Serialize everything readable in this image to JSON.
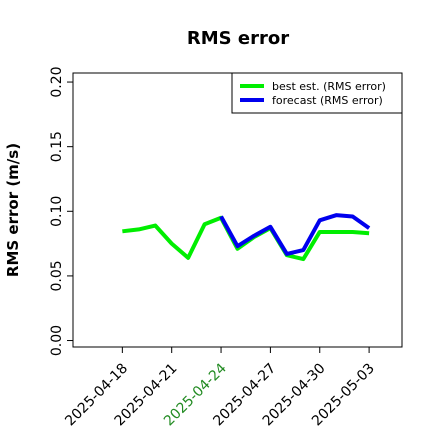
{
  "chart_data": {
    "type": "line",
    "title": "RMS error",
    "ylabel": "RMS error (m/s)",
    "x": [
      "2025-04-18",
      "2025-04-19",
      "2025-04-20",
      "2025-04-21",
      "2025-04-22",
      "2025-04-23",
      "2025-04-24",
      "2025-04-25",
      "2025-04-26",
      "2025-04-27",
      "2025-04-28",
      "2025-04-29",
      "2025-04-30",
      "2025-05-01",
      "2025-05-02",
      "2025-05-03"
    ],
    "series": [
      {
        "name": "best est. (RMS error)",
        "color": "#00ee00",
        "values": [
          0.0845,
          0.086,
          0.089,
          0.075,
          0.064,
          0.09,
          0.095,
          0.071,
          0.08,
          0.087,
          0.066,
          0.063,
          0.084,
          0.084,
          0.084,
          0.083
        ]
      },
      {
        "name": "forecast (RMS error)",
        "color": "#0000ee",
        "values": [
          null,
          null,
          null,
          null,
          null,
          null,
          0.096,
          0.073,
          0.081,
          0.088,
          0.067,
          0.07,
          0.093,
          0.097,
          0.096,
          0.087
        ]
      }
    ],
    "xlim": [
      "2025-04-15",
      "2025-05-05"
    ],
    "xticks": [
      "2025-04-18",
      "2025-04-21",
      "2025-04-24",
      "2025-04-27",
      "2025-04-30",
      "2025-05-03"
    ],
    "highlight_xtick": "2025-04-24",
    "highlight_color": "#228b22",
    "ylim": [
      -0.005,
      0.207
    ],
    "yticks": [
      {
        "value": 0,
        "label": "0.00"
      },
      0.05,
      {
        "value": 0.1,
        "label": "0.10"
      },
      0.15,
      {
        "value": 0.2,
        "label": "0.20"
      }
    ],
    "legend": "top-right"
  }
}
